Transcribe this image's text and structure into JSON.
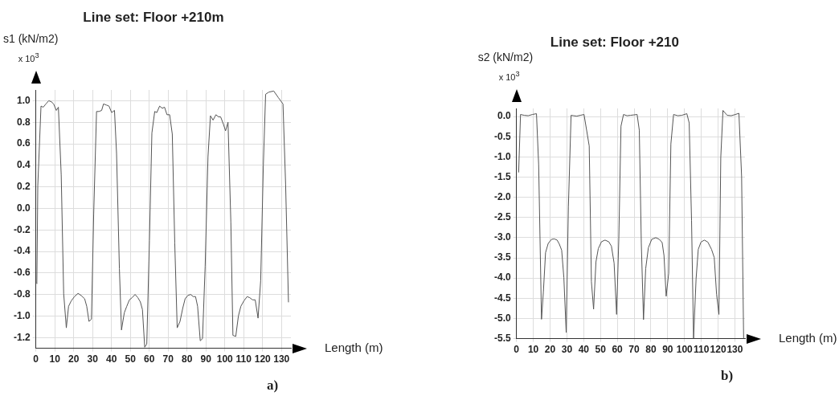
{
  "chart_data": [
    {
      "type": "line",
      "title": "Line set: Floor +210m",
      "ylabel": "s1 (kN/m2)",
      "xlabel": "Length   (m)",
      "annotations": [
        "x 10$^{3}$",
        "a)"
      ],
      "marker": "none",
      "grid": true,
      "legend": false,
      "xlim": [
        0,
        135
      ],
      "xticks": [
        0,
        10,
        20,
        30,
        40,
        50,
        60,
        70,
        80,
        90,
        100,
        110,
        120,
        130
      ],
      "ylim": [
        -1.3,
        1.1
      ],
      "yticks": [
        -1.2,
        {
          "value": -1,
          "label": "-1.0"
        },
        -0.8,
        -0.6,
        -0.4,
        -0.2,
        {
          "value": 0,
          "label": "0.0"
        },
        0.2,
        0.4,
        0.6,
        0.8,
        {
          "value": 1,
          "label": "1.0"
        }
      ],
      "series": [
        {
          "color": "#555555",
          "x": [
            0.5,
            1,
            2.7,
            3.9,
            5.3,
            6.8,
            8.2,
            9.4,
            10.8,
            11.9,
            13.4,
            14.7,
            16.1,
            17.3,
            18.7,
            20.4,
            22.3,
            24,
            25.8,
            26.9,
            28.1,
            29.4,
            30.6,
            32.1,
            33.4,
            34.8,
            35.8,
            37.3,
            38.7,
            40.1,
            41.6,
            42.7,
            44.2,
            45.3,
            46.8,
            48.1,
            49.5,
            50.9,
            52.5,
            54,
            55.3,
            56.4,
            57.6,
            58.7,
            60.1,
            61.4,
            62.9,
            64,
            65.5,
            66.9,
            68.1,
            69.4,
            70.8,
            72.2,
            73.5,
            74.8,
            76.3,
            77.7,
            79,
            80.4,
            81.9,
            83.3,
            84.5,
            85.6,
            87,
            88.2,
            89.6,
            91.1,
            92.4,
            93.8,
            95.3,
            96.7,
            97.8,
            99.3,
            100.4,
            101.7,
            103.2,
            104.3,
            105.8,
            107.2,
            108.5,
            110.1,
            111.8,
            113.2,
            114.7,
            116.1,
            117.6,
            119,
            120.4,
            121.6,
            123.3,
            125.9,
            128.3,
            130.8,
            132.2,
            133.7
          ],
          "values": [
            -0.7,
            0.21,
            0.95,
            0.94,
            0.97,
            1.0,
            0.99,
            0.97,
            0.91,
            0.94,
            0.31,
            -0.79,
            -1.11,
            -0.91,
            -0.86,
            -0.82,
            -0.79,
            -0.81,
            -0.84,
            -0.91,
            -1.05,
            -1.03,
            -0.05,
            0.9,
            0.9,
            0.91,
            0.97,
            0.96,
            0.95,
            0.89,
            0.91,
            0.51,
            -0.56,
            -1.13,
            -0.97,
            -0.91,
            -0.85,
            -0.83,
            -0.8,
            -0.83,
            -0.87,
            -0.94,
            -1.29,
            -1.26,
            -0.3,
            0.7,
            0.9,
            0.89,
            0.95,
            0.93,
            0.94,
            0.87,
            0.87,
            0.69,
            -0.32,
            -1.11,
            -1.05,
            -0.93,
            -0.84,
            -0.81,
            -0.8,
            -0.82,
            -0.82,
            -0.91,
            -1.23,
            -1.21,
            -0.54,
            0.48,
            0.86,
            0.82,
            0.87,
            0.85,
            0.85,
            0.78,
            0.72,
            0.8,
            -0.13,
            -1.18,
            -1.19,
            -1.0,
            -0.91,
            -0.86,
            -0.82,
            -0.83,
            -0.85,
            -0.85,
            -1.02,
            -0.67,
            0.4,
            1.06,
            1.08,
            1.09,
            1.03,
            0.97,
            0.22,
            -0.87
          ]
        }
      ]
    },
    {
      "type": "line",
      "title": "Line set: Floor +210",
      "ylabel": "s2 (kN/m2)",
      "xlabel": "Length   (m)",
      "annotations": [
        "x 10$^{3}$",
        "b)"
      ],
      "marker": "none",
      "grid": true,
      "legend": false,
      "xlim": [
        0,
        136
      ],
      "xticks": [
        0,
        10,
        20,
        30,
        40,
        50,
        60,
        70,
        80,
        90,
        100,
        110,
        120,
        130
      ],
      "ylim": [
        -5.5,
        0.2
      ],
      "yticks": [
        -5.5,
        {
          "value": -5,
          "label": "-5.0"
        },
        -4.5,
        {
          "value": -4,
          "label": "-4.0"
        },
        -3.5,
        {
          "value": -3,
          "label": "-3.0"
        },
        -2.5,
        {
          "value": -2,
          "label": "-2.0"
        },
        -1.5,
        {
          "value": -1,
          "label": "-1.0"
        },
        -0.5,
        {
          "value": 0,
          "label": "0.0"
        }
      ],
      "series": [
        {
          "color": "#555555",
          "x": [
            1.3,
            2.4,
            4.6,
            7,
            9.5,
            11.9,
            13.2,
            14.9,
            16,
            17.3,
            18.9,
            20.9,
            22.5,
            24.2,
            25.5,
            26.9,
            28.2,
            29.6,
            30.9,
            32.5,
            34,
            35.9,
            38,
            40.2,
            43.3,
            44.6,
            45.9,
            47.3,
            48.7,
            50.6,
            52.7,
            54.9,
            56.5,
            58.1,
            59.6,
            60.9,
            62.2,
            63.7,
            65.8,
            67.8,
            69.9,
            71.8,
            73.1,
            74.3,
            75.6,
            76.9,
            78.5,
            80.5,
            82.9,
            85,
            86.7,
            87.8,
            89.1,
            90.6,
            91.9,
            93.5,
            96,
            98.4,
            101.4,
            102.8,
            104.2,
            105.4,
            106.9,
            108.2,
            109.8,
            111.8,
            113.9,
            116.1,
            117.7,
            119.1,
            120.5,
            121.6,
            122.9,
            125.4,
            127.8,
            130.3,
            132.4,
            134,
            135.2
          ],
          "values": [
            -1.38,
            0.05,
            0.03,
            0.02,
            0.05,
            0.07,
            -1.19,
            -5.02,
            -4.35,
            -3.37,
            -3.14,
            -3.04,
            -3.03,
            -3.06,
            -3.16,
            -3.31,
            -3.99,
            -5.35,
            -2.23,
            0.03,
            0.02,
            0.01,
            0.03,
            0.05,
            -0.73,
            -4.09,
            -4.77,
            -3.6,
            -3.27,
            -3.1,
            -3.06,
            -3.1,
            -3.21,
            -3.63,
            -4.9,
            -3.04,
            -0.24,
            0.05,
            0.02,
            0.03,
            0.04,
            0.05,
            -0.34,
            -3.14,
            -5.03,
            -3.77,
            -3.25,
            -3.04,
            -3.0,
            -3.04,
            -3.12,
            -3.44,
            -4.45,
            -3.88,
            -0.68,
            0.05,
            0.02,
            0.03,
            0.07,
            -0.16,
            -2.58,
            -5.5,
            -4.02,
            -3.29,
            -3.11,
            -3.06,
            -3.11,
            -3.29,
            -3.49,
            -4.4,
            -4.9,
            -1.01,
            0.15,
            0.03,
            0.02,
            0.05,
            0.08,
            -1.49,
            -5.5
          ]
        }
      ]
    }
  ]
}
